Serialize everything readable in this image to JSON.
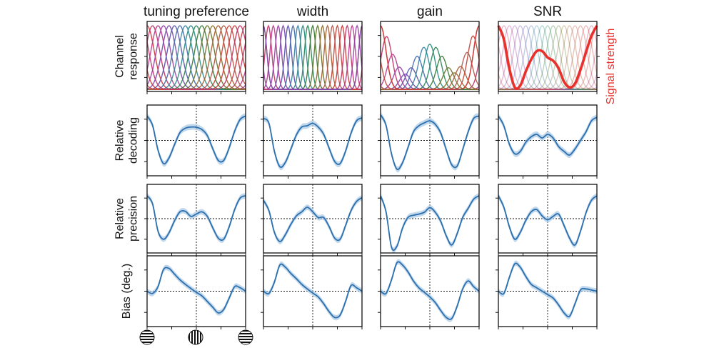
{
  "chart_data": {
    "type": "line",
    "layout": "4x4 grid of small multiples",
    "x": [
      0,
      10,
      20,
      30,
      40,
      50,
      60,
      70,
      80,
      90,
      100,
      110,
      120,
      130,
      140,
      150,
      160,
      170,
      180
    ],
    "xlim": [
      0,
      180
    ],
    "x_reference_line": 90,
    "y_reference_line": 0,
    "columns": [
      "tuning preference",
      "width",
      "gain",
      "SNR"
    ],
    "rows": [
      {
        "label": [
          "Channel",
          "response"
        ],
        "kind": "tuning_curves"
      },
      {
        "label": [
          "Relative",
          "decoding"
        ],
        "kind": "metric"
      },
      {
        "label": [
          "Relative",
          "precision"
        ],
        "kind": "metric"
      },
      {
        "label": [
          "Bias (deg.)"
        ],
        "kind": "metric"
      }
    ],
    "secondary_axis_label": "Signal strength",
    "signal_strength_curve": [
      1.0,
      0.79,
      0.33,
      0.03,
      0.06,
      0.28,
      0.47,
      0.6,
      0.6,
      0.5,
      0.45,
      0.33,
      0.12,
      0.03,
      0.09,
      0.31,
      0.58,
      0.84,
      1.0
    ],
    "tuning_curves": {
      "channels": 16,
      "colors": [
        "#d03c3c",
        "#c23a6e",
        "#b8408f",
        "#9a46a6",
        "#7c4db0",
        "#5e58b1",
        "#4a6fb0",
        "#3d86a8",
        "#2f8f86",
        "#2f8a5c",
        "#3f7d3b",
        "#6a7a31",
        "#917032",
        "#a9643a",
        "#b65b4f",
        "#c44a3f"
      ],
      "tuning_preference": {
        "centers": [
          0,
          10,
          20,
          30,
          40,
          50,
          60,
          70,
          80,
          90,
          100,
          110,
          120,
          130,
          140,
          150,
          160,
          170
        ],
        "width_deg": 13,
        "gains": [
          1,
          1,
          1,
          1,
          1,
          1,
          1,
          1,
          1,
          1,
          1,
          1,
          1,
          1,
          1,
          1,
          1,
          1
        ]
      },
      "width": {
        "centers": [
          0,
          9,
          18,
          27,
          36,
          45,
          54,
          63,
          72,
          81,
          90,
          99,
          108,
          117,
          126,
          135,
          144,
          153,
          162,
          171,
          180
        ],
        "width_deg": 6,
        "gains": [
          1,
          1,
          1,
          1,
          1,
          1,
          1,
          1,
          1,
          1,
          1,
          1,
          1,
          1,
          1,
          1,
          1,
          1,
          1,
          1,
          1
        ]
      },
      "gain": {
        "centers": [
          0,
          11,
          22,
          34,
          45,
          56,
          67,
          79,
          90,
          101,
          112,
          124,
          135,
          146,
          158,
          169,
          180
        ],
        "width_deg": 10,
        "gains": [
          1.0,
          0.83,
          0.55,
          0.35,
          0.24,
          0.34,
          0.52,
          0.66,
          0.71,
          0.66,
          0.52,
          0.34,
          0.26,
          0.36,
          0.58,
          0.84,
          1.0
        ]
      },
      "SNR": {
        "centers": [
          0,
          10,
          20,
          30,
          40,
          50,
          60,
          70,
          80,
          90,
          100,
          110,
          120,
          130,
          140,
          150,
          160,
          170
        ],
        "width_deg": 12,
        "gains": [
          1,
          1,
          1,
          1,
          1,
          1,
          1,
          1,
          1,
          1,
          1,
          1,
          1,
          1,
          1,
          1,
          1,
          1
        ],
        "faded": true
      }
    },
    "series": [
      {
        "row": "Relative decoding",
        "column": "tuning preference",
        "values": [
          1.0,
          0.62,
          -0.4,
          -0.95,
          -0.72,
          -0.18,
          0.32,
          0.5,
          0.55,
          0.54,
          0.45,
          0.2,
          -0.34,
          -0.82,
          -0.82,
          -0.3,
          0.38,
          0.86,
          1.0
        ]
      },
      {
        "row": "Relative decoding",
        "column": "width",
        "values": [
          0.9,
          0.7,
          -0.45,
          -1.08,
          -0.9,
          -0.36,
          0.22,
          0.55,
          0.6,
          0.7,
          0.55,
          0.25,
          -0.32,
          -0.86,
          -0.95,
          -0.44,
          0.3,
          0.8,
          0.92
        ]
      },
      {
        "row": "Relative decoding",
        "column": "gain",
        "values": [
          1.05,
          0.62,
          -0.55,
          -1.18,
          -0.92,
          -0.3,
          0.35,
          0.6,
          0.72,
          0.8,
          0.66,
          0.3,
          -0.38,
          -1.0,
          -1.05,
          -0.38,
          0.35,
          0.9,
          1.0
        ]
      },
      {
        "row": "Relative decoding",
        "column": "SNR",
        "values": [
          1.0,
          0.6,
          -0.15,
          -0.55,
          -0.45,
          -0.08,
          0.15,
          0.25,
          0.1,
          0.25,
          0.1,
          -0.25,
          -0.45,
          -0.6,
          -0.35,
          0.0,
          0.35,
          0.8,
          0.95
        ]
      },
      {
        "row": "Relative precision",
        "column": "tuning preference",
        "values": [
          1.0,
          0.65,
          -0.55,
          -0.9,
          -0.62,
          -0.1,
          0.3,
          0.32,
          0.1,
          0.2,
          0.3,
          0.1,
          -0.4,
          -0.85,
          -0.9,
          -0.35,
          0.4,
          0.9,
          1.0
        ]
      },
      {
        "row": "Relative precision",
        "column": "width",
        "values": [
          0.8,
          0.35,
          -0.6,
          -1.0,
          -0.7,
          -0.25,
          0.12,
          0.3,
          0.5,
          0.3,
          0.05,
          0.05,
          -0.35,
          -0.85,
          -0.9,
          -0.3,
          0.35,
          0.75,
          0.92
        ]
      },
      {
        "row": "Relative precision",
        "column": "gain",
        "values": [
          1.0,
          0.3,
          -1.25,
          -1.2,
          -0.42,
          0.05,
          0.15,
          0.2,
          0.28,
          0.48,
          0.28,
          -0.12,
          -0.75,
          -1.15,
          -0.65,
          0.05,
          0.45,
          0.85,
          1.0
        ]
      },
      {
        "row": "Relative precision",
        "column": "SNR",
        "values": [
          1.0,
          0.5,
          -0.35,
          -0.9,
          -0.6,
          -0.08,
          0.3,
          0.4,
          0.12,
          -0.05,
          0.1,
          0.2,
          -0.3,
          -0.85,
          -1.15,
          -0.55,
          0.25,
          0.8,
          1.0
        ]
      },
      {
        "row": "Bias (deg.)",
        "column": "tuning preference",
        "values": [
          0.0,
          -0.1,
          0.2,
          0.95,
          1.0,
          0.75,
          0.5,
          0.3,
          0.12,
          -0.05,
          -0.2,
          -0.45,
          -0.7,
          -0.95,
          -0.8,
          -0.3,
          0.2,
          0.15,
          0.0
        ]
      },
      {
        "row": "Bias (deg.)",
        "column": "width",
        "values": [
          0.0,
          -0.1,
          0.4,
          1.15,
          1.05,
          0.78,
          0.55,
          0.3,
          0.1,
          -0.08,
          -0.25,
          -0.55,
          -0.9,
          -1.15,
          -1.05,
          -0.45,
          0.25,
          0.15,
          0.0
        ]
      },
      {
        "row": "Bias (deg.)",
        "column": "gain",
        "values": [
          0.0,
          -0.1,
          0.5,
          1.25,
          1.15,
          0.85,
          0.45,
          0.15,
          -0.05,
          -0.25,
          -0.5,
          -0.85,
          -1.15,
          -1.2,
          -0.65,
          0.1,
          0.45,
          0.2,
          0.0
        ]
      },
      {
        "row": "Bias (deg.)",
        "column": "SNR",
        "values": [
          0.0,
          -0.1,
          0.6,
          1.2,
          1.05,
          0.65,
          0.3,
          0.15,
          0.0,
          -0.15,
          -0.3,
          -0.6,
          -0.95,
          -1.1,
          -0.55,
          0.05,
          0.1,
          0.05,
          0.0
        ]
      }
    ],
    "band_halfwidth": 0.12,
    "line_color": "#2c6fad",
    "band_color": "#a8c9e6",
    "grating_icons": [
      "horizontal grating",
      "vertical grating",
      "horizontal grating"
    ]
  }
}
